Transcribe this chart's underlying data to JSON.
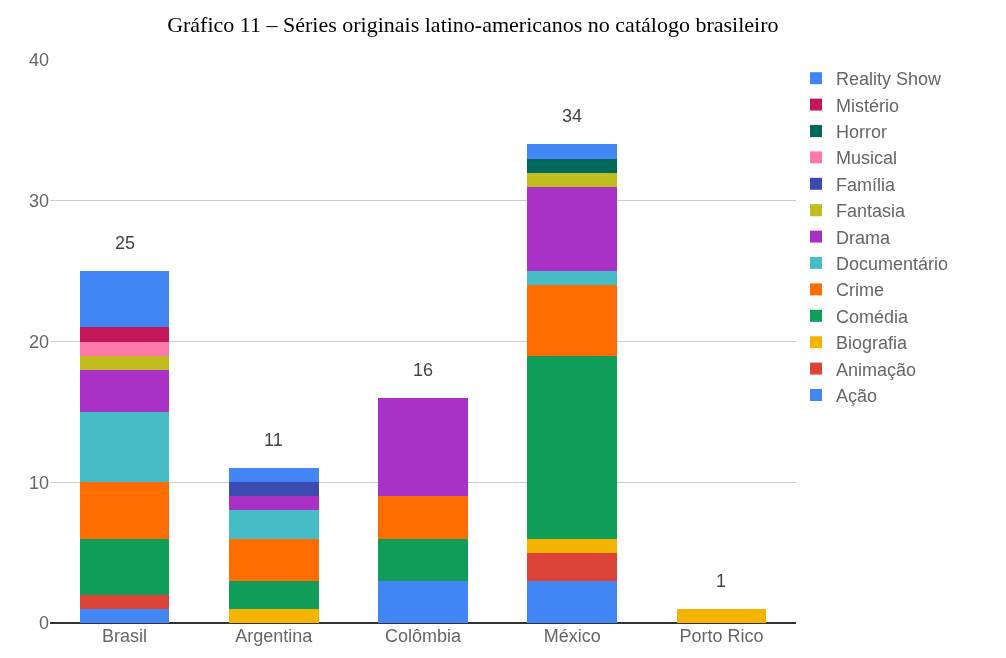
{
  "chart_data": {
    "type": "bar",
    "title": "Gráfico 11 – Séries originais latino-americanos no catálogo brasileiro",
    "stacked": true,
    "categories": [
      "Brasil",
      "Argentina",
      "Colômbia",
      "México",
      "Porto Rico"
    ],
    "series": [
      {
        "name": "Ação",
        "color": "#4285f4",
        "values": [
          1,
          0,
          3,
          3,
          0
        ]
      },
      {
        "name": "Animação",
        "color": "#db4437",
        "values": [
          1,
          0,
          0,
          2,
          0
        ]
      },
      {
        "name": "Biografia",
        "color": "#f4b400",
        "values": [
          0,
          1,
          0,
          1,
          1
        ]
      },
      {
        "name": "Comédia",
        "color": "#0f9d58",
        "values": [
          4,
          2,
          3,
          13,
          0
        ]
      },
      {
        "name": "Crime",
        "color": "#ff6d01",
        "values": [
          4,
          3,
          3,
          5,
          0
        ]
      },
      {
        "name": "Documentário",
        "color": "#46bdc6",
        "values": [
          5,
          2,
          0,
          1,
          0
        ]
      },
      {
        "name": "Drama",
        "color": "#aa31c6",
        "values": [
          3,
          1,
          7,
          6,
          0
        ]
      },
      {
        "name": "Fantasia",
        "color": "#c2bd1f",
        "values": [
          1,
          0,
          0,
          1,
          0
        ]
      },
      {
        "name": "Família",
        "color": "#3b4bb0",
        "values": [
          0,
          1,
          0,
          0,
          0
        ]
      },
      {
        "name": "Musical",
        "color": "#ff7aa8",
        "values": [
          1,
          0,
          0,
          0,
          0
        ]
      },
      {
        "name": "Horror",
        "color": "#00695c",
        "values": [
          0,
          0,
          0,
          1,
          0
        ]
      },
      {
        "name": "Mistério",
        "color": "#c2185b",
        "values": [
          1,
          0,
          0,
          0,
          0
        ]
      },
      {
        "name": "Reality Show",
        "color": "#4285f4",
        "values": [
          4,
          1,
          0,
          1,
          0
        ]
      }
    ],
    "totals": [
      "25",
      "11",
      "16",
      "34",
      "1"
    ],
    "ylim": [
      0,
      40
    ],
    "yticks": [
      0,
      10,
      20,
      30,
      40
    ],
    "grid": "y",
    "legend": "right"
  }
}
